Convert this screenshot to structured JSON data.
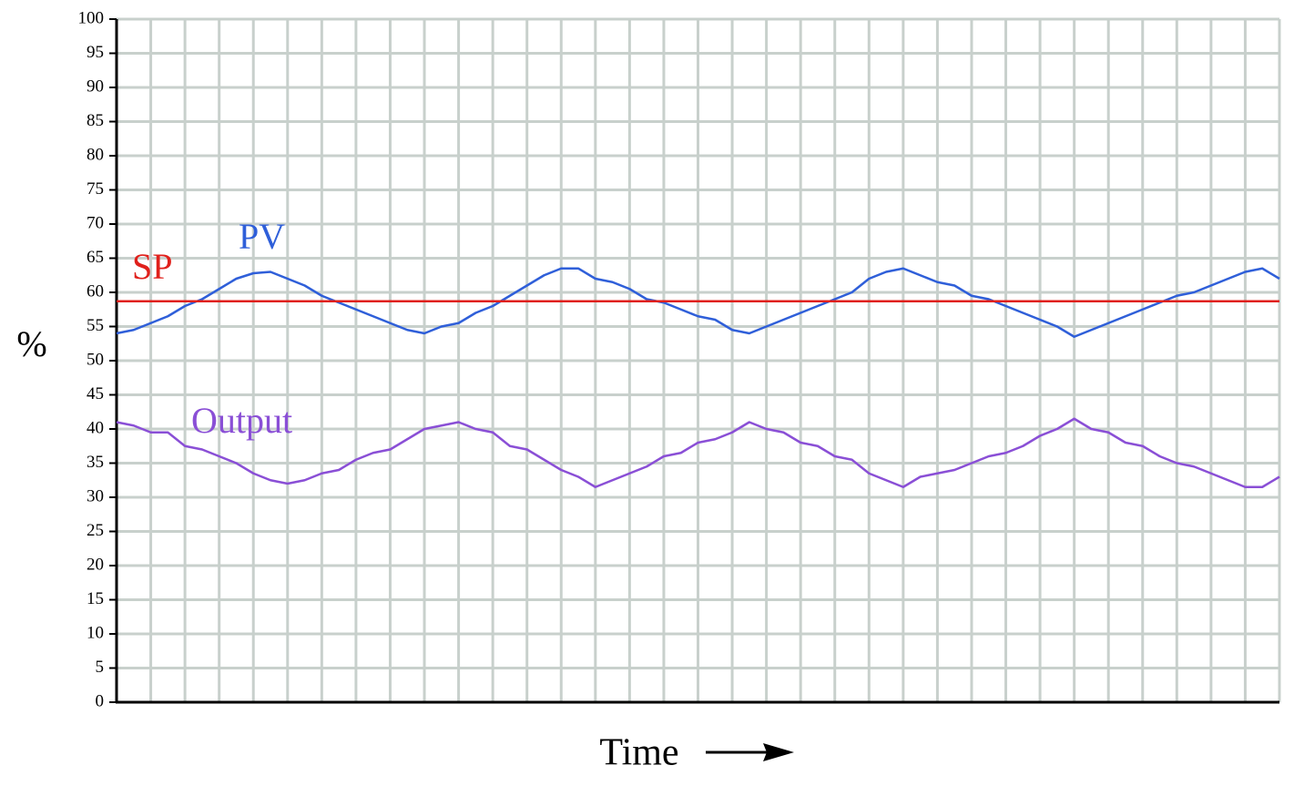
{
  "chart_data": {
    "type": "line",
    "y_label": "%",
    "x_label": "Time",
    "categories": [
      null,
      null,
      null,
      null,
      null,
      null,
      null,
      null,
      null,
      null,
      null,
      null,
      null,
      null,
      null,
      null,
      null,
      null,
      null,
      null,
      null,
      null,
      null,
      null,
      null,
      null,
      null,
      null,
      null,
      null,
      null,
      null,
      null,
      null,
      null,
      null,
      null,
      null,
      null,
      null,
      null,
      null,
      null,
      null,
      null,
      null,
      null,
      null,
      null,
      null,
      null,
      null,
      null,
      null,
      null,
      null,
      null,
      null,
      null,
      null,
      null,
      null,
      null,
      null,
      null,
      null,
      null,
      null,
      null
    ],
    "series": [
      {
        "name": "PV",
        "color": "#2f5fd9",
        "values": [
          54,
          54.5,
          55.5,
          56.5,
          58,
          59,
          60.5,
          62,
          62.8,
          63,
          62,
          61,
          59.5,
          58.5,
          57.5,
          56.5,
          55.5,
          54.5,
          54,
          55,
          55.5,
          57,
          58,
          59.5,
          61,
          62.5,
          63.5,
          63.5,
          62,
          61.5,
          60.5,
          59,
          58.5,
          57.5,
          56.5,
          56,
          54.5,
          54,
          55,
          56,
          57,
          58,
          59,
          60,
          62,
          63,
          63.5,
          62.5,
          61.5,
          61,
          59.5,
          59,
          58,
          57,
          56,
          55,
          53.5,
          54.5,
          55.5,
          56.5,
          57.5,
          58.5,
          59.5,
          60,
          61,
          62,
          63,
          63.5,
          62
        ]
      },
      {
        "name": "SP",
        "color": "#e0201b",
        "values": [
          58.7,
          58.7,
          58.7,
          58.7,
          58.7,
          58.7,
          58.7,
          58.7,
          58.7,
          58.7,
          58.7,
          58.7,
          58.7,
          58.7,
          58.7,
          58.7,
          58.7,
          58.7,
          58.7,
          58.7,
          58.7,
          58.7,
          58.7,
          58.7,
          58.7,
          58.7,
          58.7,
          58.7,
          58.7,
          58.7,
          58.7,
          58.7,
          58.7,
          58.7,
          58.7,
          58.7,
          58.7,
          58.7,
          58.7,
          58.7,
          58.7,
          58.7,
          58.7,
          58.7,
          58.7,
          58.7,
          58.7,
          58.7,
          58.7,
          58.7,
          58.7,
          58.7,
          58.7,
          58.7,
          58.7,
          58.7,
          58.7,
          58.7,
          58.7,
          58.7,
          58.7,
          58.7,
          58.7,
          58.7,
          58.7,
          58.7,
          58.7,
          58.7,
          58.7
        ]
      },
      {
        "name": "Output",
        "color": "#8a4fd6",
        "values": [
          41,
          40.5,
          39.5,
          39.5,
          37.5,
          37,
          36,
          35,
          33.5,
          32.5,
          32,
          32.5,
          33.5,
          34,
          35.5,
          36.5,
          37,
          38.5,
          40,
          40.5,
          41,
          40,
          39.5,
          37.5,
          37,
          35.5,
          34,
          33,
          31.5,
          32.5,
          33.5,
          34.5,
          36,
          36.5,
          38,
          38.5,
          39.5,
          41,
          40,
          39.5,
          38,
          37.5,
          36,
          35.5,
          33.5,
          32.5,
          31.5,
          33,
          33.5,
          34,
          35,
          36,
          36.5,
          37.5,
          39,
          40,
          41.5,
          40,
          39.5,
          38,
          37.5,
          36,
          35,
          34.5,
          33.5,
          32.5,
          31.5,
          31.5,
          33
        ]
      }
    ],
    "ylim": [
      0,
      100
    ],
    "yticks": [
      0,
      5,
      10,
      15,
      20,
      25,
      30,
      35,
      40,
      45,
      50,
      55,
      60,
      65,
      70,
      75,
      80,
      85,
      90,
      95,
      100
    ],
    "grid": true
  }
}
